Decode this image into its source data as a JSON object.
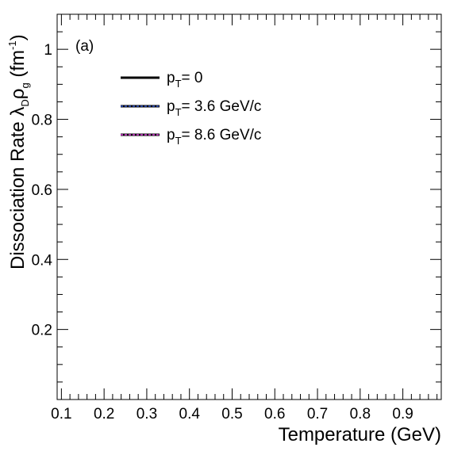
{
  "chart_data": {
    "type": "line",
    "panel_label": "(a)",
    "xlabel": "Temperature (GeV)",
    "ylabel": {
      "main": "Dissociation Rate ",
      "lambda": "λ",
      "lambda_sub": "D",
      "rho": "ρ",
      "rho_sub": "g",
      "unit_open": " (fm",
      "unit_sup": "-1",
      "unit_close": ")"
    },
    "xlim": [
      0.09,
      0.99
    ],
    "ylim": [
      0.0,
      1.1
    ],
    "x_ticks": [
      "0.1",
      "0.2",
      "0.3",
      "0.4",
      "0.5",
      "0.6",
      "0.7",
      "0.8",
      "0.9"
    ],
    "x_tick_values": [
      0.1,
      0.2,
      0.3,
      0.4,
      0.5,
      0.6,
      0.7,
      0.8,
      0.9
    ],
    "y_ticks": [
      "0.2",
      "0.4",
      "0.6",
      "0.8",
      "1"
    ],
    "y_tick_values": [
      0.2,
      0.4,
      0.6,
      0.8,
      1.0
    ],
    "grid": false,
    "legend_position": "top-left",
    "series": [
      {
        "p": "p",
        "sub": "T",
        "rest": "= 0",
        "color": "#000000",
        "overlay": null,
        "x": [],
        "y": []
      },
      {
        "p": "p",
        "sub": "T",
        "rest": "= 3.6 GeV/c",
        "color": "#000000",
        "overlay": "#3355cc",
        "x": [],
        "y": []
      },
      {
        "p": "p",
        "sub": "T",
        "rest": "= 8.6 GeV/c",
        "color": "#000000",
        "overlay": "#e040e0",
        "x": [],
        "y": []
      }
    ]
  }
}
